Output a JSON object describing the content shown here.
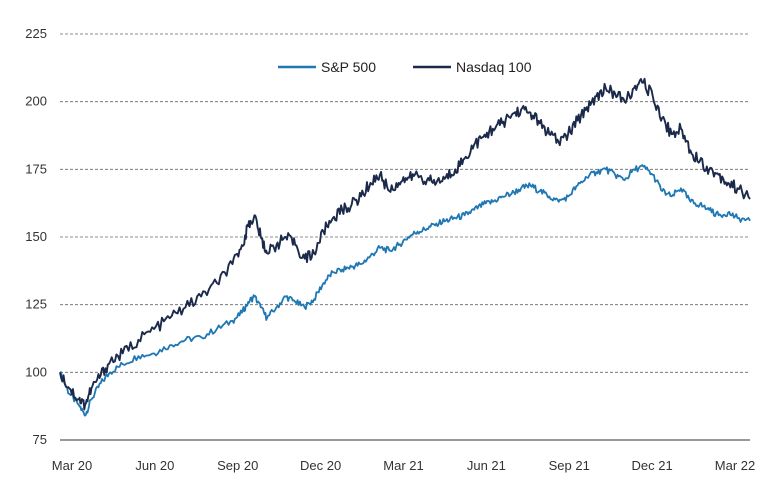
{
  "chart_data": {
    "type": "line",
    "title": "",
    "xlabel": "",
    "ylabel": "",
    "ylim": [
      75,
      225
    ],
    "y_ticks": [
      75,
      100,
      125,
      150,
      175,
      200,
      225
    ],
    "x_tick_labels": [
      "Mar 20",
      "Jun 20",
      "Sep 20",
      "Dec 20",
      "Mar 21",
      "Jun 21",
      "Sep 21",
      "Dec 21",
      "Mar 22"
    ],
    "grid": "horizontal dashed",
    "legend_position": "top-center",
    "series": [
      {
        "name": "S&P 500",
        "color": "#1f77b4",
        "points": [
          [
            0,
            100
          ],
          [
            0.3,
            92
          ],
          [
            0.6,
            88
          ],
          [
            0.8,
            84
          ],
          [
            1.0,
            90
          ],
          [
            1.3,
            96
          ],
          [
            1.6,
            100
          ],
          [
            2.0,
            103
          ],
          [
            2.5,
            106
          ],
          [
            3.0,
            107
          ],
          [
            3.5,
            110
          ],
          [
            4.0,
            112
          ],
          [
            4.5,
            113
          ],
          [
            5.0,
            116
          ],
          [
            5.5,
            119
          ],
          [
            5.8,
            122
          ],
          [
            6.0,
            126
          ],
          [
            6.2,
            128
          ],
          [
            6.4,
            124
          ],
          [
            6.6,
            120
          ],
          [
            6.9,
            124
          ],
          [
            7.2,
            128
          ],
          [
            7.5,
            126
          ],
          [
            7.8,
            124
          ],
          [
            8.1,
            127
          ],
          [
            8.4,
            133
          ],
          [
            8.7,
            137
          ],
          [
            9.0,
            138
          ],
          [
            9.3,
            139
          ],
          [
            9.6,
            140
          ],
          [
            9.9,
            143
          ],
          [
            10.2,
            146
          ],
          [
            10.5,
            145
          ],
          [
            10.8,
            147
          ],
          [
            11.1,
            150
          ],
          [
            11.4,
            152
          ],
          [
            11.7,
            153
          ],
          [
            12.0,
            155
          ],
          [
            12.3,
            156
          ],
          [
            12.6,
            157
          ],
          [
            12.9,
            158
          ],
          [
            13.2,
            160
          ],
          [
            13.5,
            162
          ],
          [
            13.8,
            163
          ],
          [
            14.1,
            165
          ],
          [
            14.4,
            166
          ],
          [
            14.7,
            168
          ],
          [
            15.0,
            169
          ],
          [
            15.3,
            167
          ],
          [
            15.6,
            165
          ],
          [
            15.9,
            163
          ],
          [
            16.2,
            165
          ],
          [
            16.5,
            169
          ],
          [
            16.8,
            172
          ],
          [
            17.1,
            174
          ],
          [
            17.4,
            175
          ],
          [
            17.7,
            173
          ],
          [
            18.0,
            171
          ],
          [
            18.3,
            175
          ],
          [
            18.6,
            176
          ],
          [
            18.9,
            173
          ],
          [
            19.2,
            167
          ],
          [
            19.5,
            165
          ],
          [
            19.8,
            168
          ],
          [
            20.1,
            163
          ],
          [
            20.4,
            162
          ],
          [
            20.7,
            160
          ],
          [
            21.0,
            158
          ],
          [
            21.3,
            159
          ],
          [
            21.6,
            157
          ],
          [
            22.0,
            156
          ]
        ]
      },
      {
        "name": "Nasdaq 100",
        "color": "#1b2a4a",
        "points": [
          [
            0,
            100
          ],
          [
            0.3,
            94
          ],
          [
            0.6,
            90
          ],
          [
            0.8,
            88
          ],
          [
            1.0,
            94
          ],
          [
            1.3,
            99
          ],
          [
            1.6,
            104
          ],
          [
            2.0,
            107
          ],
          [
            2.5,
            112
          ],
          [
            3.0,
            116
          ],
          [
            3.5,
            120
          ],
          [
            4.0,
            124
          ],
          [
            4.5,
            128
          ],
          [
            5.0,
            133
          ],
          [
            5.5,
            140
          ],
          [
            5.8,
            147
          ],
          [
            6.0,
            154
          ],
          [
            6.2,
            158
          ],
          [
            6.4,
            150
          ],
          [
            6.6,
            144
          ],
          [
            6.9,
            147
          ],
          [
            7.2,
            150
          ],
          [
            7.5,
            147
          ],
          [
            7.8,
            142
          ],
          [
            8.1,
            144
          ],
          [
            8.4,
            152
          ],
          [
            8.7,
            157
          ],
          [
            9.0,
            160
          ],
          [
            9.3,
            162
          ],
          [
            9.6,
            165
          ],
          [
            9.9,
            170
          ],
          [
            10.2,
            173
          ],
          [
            10.5,
            167
          ],
          [
            10.8,
            170
          ],
          [
            11.1,
            172
          ],
          [
            11.4,
            173
          ],
          [
            11.7,
            171
          ],
          [
            12.0,
            170
          ],
          [
            12.3,
            172
          ],
          [
            12.6,
            175
          ],
          [
            12.9,
            179
          ],
          [
            13.2,
            184
          ],
          [
            13.5,
            187
          ],
          [
            13.8,
            190
          ],
          [
            14.1,
            192
          ],
          [
            14.4,
            195
          ],
          [
            14.7,
            197
          ],
          [
            15.0,
            196
          ],
          [
            15.3,
            192
          ],
          [
            15.6,
            188
          ],
          [
            15.9,
            185
          ],
          [
            16.2,
            188
          ],
          [
            16.5,
            193
          ],
          [
            16.8,
            198
          ],
          [
            17.1,
            202
          ],
          [
            17.4,
            205
          ],
          [
            17.7,
            203
          ],
          [
            18.0,
            200
          ],
          [
            18.3,
            205
          ],
          [
            18.6,
            207
          ],
          [
            18.9,
            202
          ],
          [
            19.2,
            194
          ],
          [
            19.5,
            188
          ],
          [
            19.8,
            190
          ],
          [
            20.1,
            182
          ],
          [
            20.4,
            178
          ],
          [
            20.7,
            175
          ],
          [
            21.0,
            173
          ],
          [
            21.3,
            170
          ],
          [
            21.6,
            168
          ],
          [
            22.0,
            164
          ]
        ]
      }
    ],
    "x_range": [
      0,
      22
    ]
  }
}
